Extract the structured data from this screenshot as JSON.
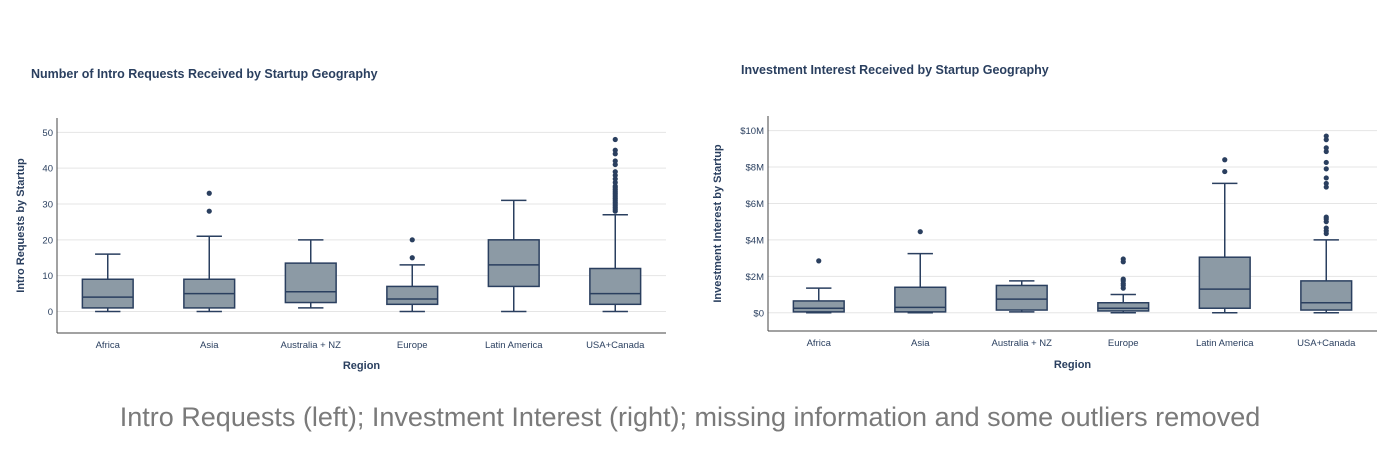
{
  "chart_data": [
    {
      "type": "box",
      "title": "Number of Intro Requests Received by Startup Geography",
      "xlabel": "Region",
      "ylabel": "Intro Requests by Startup",
      "ylim": [
        -6,
        54
      ],
      "yticks": [
        0,
        10,
        20,
        30,
        40,
        50
      ],
      "ytick_labels": [
        "0",
        "10",
        "20",
        "30",
        "40",
        "50"
      ],
      "grid": true,
      "box_color": "#8c9aa5",
      "line_color": "#2a3f5f",
      "categories": [
        "Africa",
        "Asia",
        "Australia + NZ",
        "Europe",
        "Latin America",
        "USA+Canada"
      ],
      "boxes": [
        {
          "min": 0,
          "q1": 1,
          "median": 4,
          "q3": 9,
          "max": 16,
          "outliers": []
        },
        {
          "min": 0,
          "q1": 1,
          "median": 5,
          "q3": 9,
          "max": 21,
          "outliers": [
            28,
            33
          ]
        },
        {
          "min": 1,
          "q1": 2.5,
          "median": 5.5,
          "q3": 13.5,
          "max": 20,
          "outliers": []
        },
        {
          "min": 0,
          "q1": 2,
          "median": 3.5,
          "q3": 7,
          "max": 13,
          "outliers": [
            15,
            20
          ]
        },
        {
          "min": 0,
          "q1": 7,
          "median": 13,
          "q3": 20,
          "max": 31,
          "outliers": []
        },
        {
          "min": 0,
          "q1": 2,
          "median": 5,
          "q3": 12,
          "max": 27,
          "outliers": [
            28,
            28.5,
            29,
            29.5,
            30,
            30.5,
            31,
            31.5,
            32,
            32.5,
            33,
            33.5,
            34,
            34.5,
            35,
            36,
            37,
            38,
            39,
            41,
            42,
            44,
            45,
            48
          ]
        }
      ]
    },
    {
      "type": "box",
      "title": "Investment Interest Received by Startup Geography",
      "xlabel": "Region",
      "ylabel": "Investment Interest by Startup",
      "ylim": [
        -1.0,
        10.8
      ],
      "yticks": [
        0,
        2,
        4,
        6,
        8,
        10
      ],
      "ytick_labels": [
        "$0",
        "$2M",
        "$4M",
        "$6M",
        "$8M",
        "$10M"
      ],
      "grid": true,
      "box_color": "#8c9aa5",
      "line_color": "#2a3f5f",
      "categories": [
        "Africa",
        "Asia",
        "Australia + NZ",
        "Europe",
        "Latin America",
        "USA+Canada"
      ],
      "boxes": [
        {
          "min": 0,
          "q1": 0.05,
          "median": 0.25,
          "q3": 0.65,
          "max": 1.35,
          "outliers": [
            2.85
          ]
        },
        {
          "min": 0,
          "q1": 0.05,
          "median": 0.3,
          "q3": 1.4,
          "max": 3.25,
          "outliers": [
            4.45
          ]
        },
        {
          "min": 0.05,
          "q1": 0.15,
          "median": 0.75,
          "q3": 1.5,
          "max": 1.75,
          "outliers": []
        },
        {
          "min": 0,
          "q1": 0.1,
          "median": 0.25,
          "q3": 0.55,
          "max": 1.0,
          "outliers": [
            1.35,
            1.5,
            1.6,
            1.75,
            1.85,
            2.8,
            2.95
          ]
        },
        {
          "min": 0,
          "q1": 0.25,
          "median": 1.3,
          "q3": 3.05,
          "max": 7.1,
          "outliers": [
            7.75,
            8.4
          ]
        },
        {
          "min": 0,
          "q1": 0.15,
          "median": 0.55,
          "q3": 1.75,
          "max": 4.0,
          "outliers": [
            4.35,
            4.5,
            4.65,
            5.0,
            5.15,
            5.25,
            6.9,
            7.1,
            7.4,
            7.9,
            8.25,
            8.85,
            9.05,
            9.5,
            9.7
          ]
        }
      ]
    }
  ],
  "caption": "Intro Requests (left); Investment Interest (right); missing information and some outliers removed"
}
